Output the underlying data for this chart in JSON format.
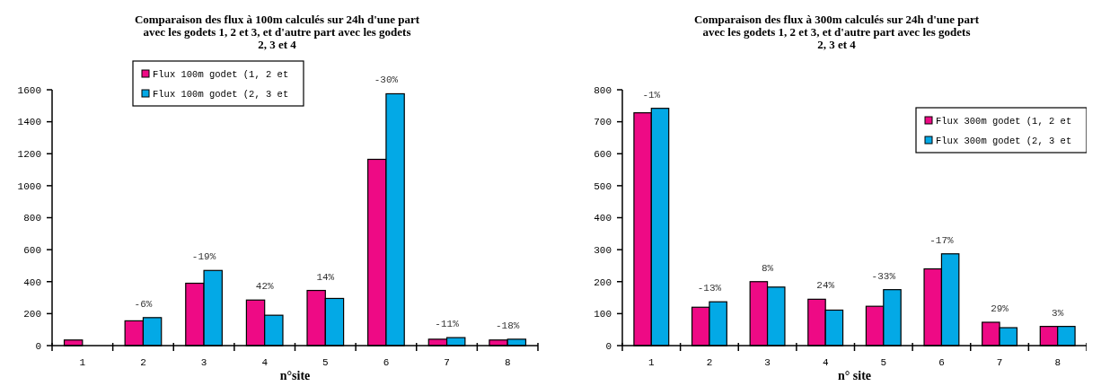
{
  "chart_data": [
    {
      "type": "bar",
      "title": "Comparaison des flux à 100m calculés sur 24h d'une part avec les godets 1, 2 et 3, et d'autre part avec les godets 2, 3 et 4",
      "xlabel": "n°site",
      "categories": [
        "1",
        "2",
        "3",
        "4",
        "5",
        "6",
        "7",
        "8"
      ],
      "series": [
        {
          "name": "Flux 100m godet (1, 2 et",
          "color": "#ee0a85",
          "values": [
            35,
            155,
            390,
            285,
            345,
            1165,
            40,
            35
          ]
        },
        {
          "name": "Flux 100m godet (2, 3 et",
          "color": "#03a9e6",
          "values": [
            null,
            175,
            470,
            190,
            295,
            1575,
            50,
            40
          ]
        }
      ],
      "ylim": [
        0,
        1600
      ],
      "yticks": [
        0,
        200,
        400,
        600,
        800,
        1000,
        1200,
        1400,
        1600
      ],
      "grid": false,
      "legend": "top",
      "annotations": [
        {
          "text": "-6%",
          "x": "2",
          "y": 175
        },
        {
          "text": "-19%",
          "x": "3",
          "y": 470
        },
        {
          "text": "42%",
          "x": "4",
          "y": 285
        },
        {
          "text": "14%",
          "x": "5",
          "y": 345
        },
        {
          "text": "-30%",
          "x": "6",
          "y": 1575
        },
        {
          "text": "-11%",
          "x": "7",
          "y": 50
        },
        {
          "text": "-18%",
          "x": "8",
          "y": 40
        }
      ]
    },
    {
      "type": "bar",
      "title": "Comparaison des flux à 300m calculés sur 24h d'une part avec les godets 1, 2 et 3, et d'autre part avec les godets 2, 3 et 4",
      "xlabel": "n° site",
      "categories": [
        "1",
        "2",
        "3",
        "4",
        "5",
        "6",
        "7",
        "8"
      ],
      "series": [
        {
          "name": "Flux 300m godet (1, 2 et",
          "color": "#ee0a85",
          "values": [
            728,
            120,
            200,
            145,
            123,
            240,
            73,
            60
          ]
        },
        {
          "name": "Flux 300m godet (2, 3 et",
          "color": "#03a9e6",
          "values": [
            742,
            137,
            183,
            111,
            175,
            287,
            56,
            60
          ]
        }
      ],
      "ylim": [
        0,
        800
      ],
      "yticks": [
        0,
        100,
        200,
        300,
        400,
        500,
        600,
        700,
        800
      ],
      "grid": false,
      "legend": "top right",
      "annotations": [
        {
          "text": "-1%",
          "x": "1",
          "y": 742
        },
        {
          "text": "-13%",
          "x": "2",
          "y": 137
        },
        {
          "text": "8%",
          "x": "3",
          "y": 200
        },
        {
          "text": "24%",
          "x": "4",
          "y": 145
        },
        {
          "text": "-33%",
          "x": "5",
          "y": 175
        },
        {
          "text": "-17%",
          "x": "6",
          "y": 287
        },
        {
          "text": "29%",
          "x": "7",
          "y": 73
        },
        {
          "text": "3%",
          "x": "8",
          "y": 60
        }
      ]
    }
  ]
}
